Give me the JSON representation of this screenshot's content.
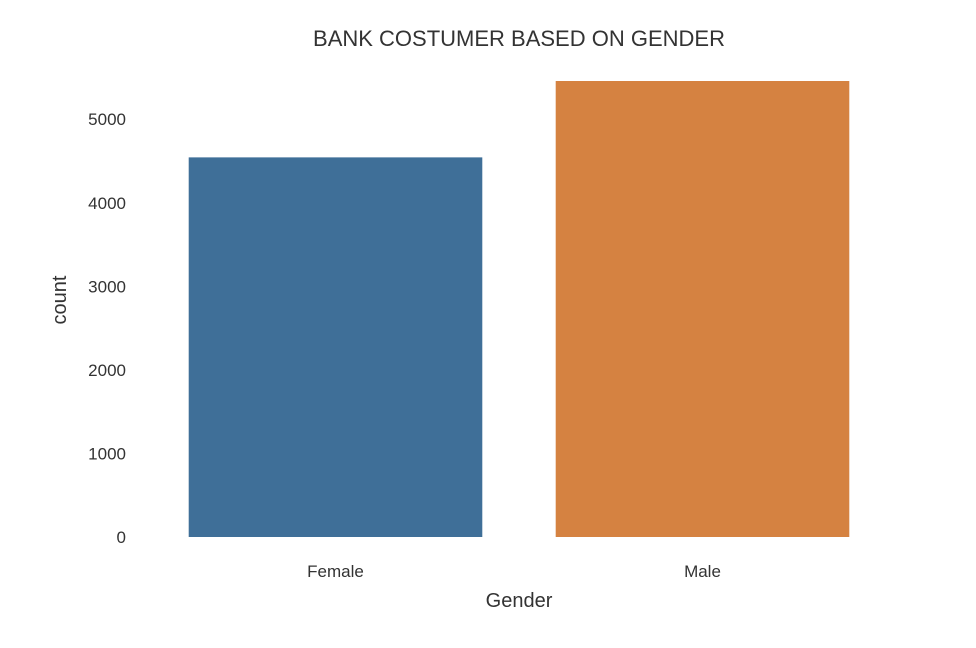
{
  "chart_data": {
    "type": "bar",
    "title": "BANK COSTUMER BASED ON GENDER",
    "xlabel": "Gender",
    "ylabel": "count",
    "categories": [
      "Female",
      "Male"
    ],
    "values": [
      4543,
      5457
    ],
    "ylim": [
      0,
      5457
    ],
    "yticks": [
      0,
      1000,
      2000,
      3000,
      4000,
      5000
    ],
    "grid": false,
    "colors": [
      "#3f6f98",
      "#d58241"
    ]
  }
}
